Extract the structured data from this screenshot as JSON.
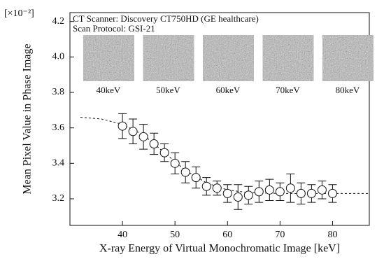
{
  "chart_data": {
    "type": "scatter",
    "exponent_label": "[×10⁻²]",
    "annotations": [
      "CT Scanner: Discovery CT750HD (GE healthcare)",
      "Scan Protocol: GSI-21"
    ],
    "image_labels": [
      "40keV",
      "50keV",
      "60keV",
      "70keV",
      "80keV"
    ],
    "xlabel": "X-ray Energy of Virtual Monochromatic Image [keV]",
    "ylabel": "Mean Pixel Value in Phase Image",
    "x": [
      40,
      42,
      44,
      46,
      48,
      50,
      52,
      54,
      56,
      58,
      60,
      62,
      64,
      66,
      68,
      70,
      72,
      74,
      76,
      78,
      80
    ],
    "values": [
      3.61,
      3.58,
      3.55,
      3.51,
      3.46,
      3.4,
      3.35,
      3.32,
      3.27,
      3.26,
      3.23,
      3.21,
      3.22,
      3.24,
      3.25,
      3.24,
      3.26,
      3.23,
      3.23,
      3.25,
      3.23
    ],
    "errors": [
      0.07,
      0.07,
      0.07,
      0.06,
      0.05,
      0.06,
      0.06,
      0.06,
      0.05,
      0.04,
      0.05,
      0.07,
      0.05,
      0.06,
      0.06,
      0.05,
      0.08,
      0.06,
      0.05,
      0.05,
      0.05
    ],
    "fit_x": [
      32,
      36,
      40,
      44,
      48,
      52,
      56,
      60,
      64,
      70,
      80,
      87
    ],
    "fit_y": [
      3.66,
      3.65,
      3.62,
      3.56,
      3.46,
      3.36,
      3.29,
      3.25,
      3.235,
      3.23,
      3.23,
      3.23
    ],
    "xlim": [
      30,
      87
    ],
    "ylim": [
      3.05,
      4.25
    ],
    "xticks": [
      40,
      50,
      60,
      70,
      80
    ],
    "yticks": [
      3.2,
      3.4,
      3.6,
      3.8,
      {
        "value": 4,
        "label": "4.0"
      },
      4.2
    ]
  }
}
